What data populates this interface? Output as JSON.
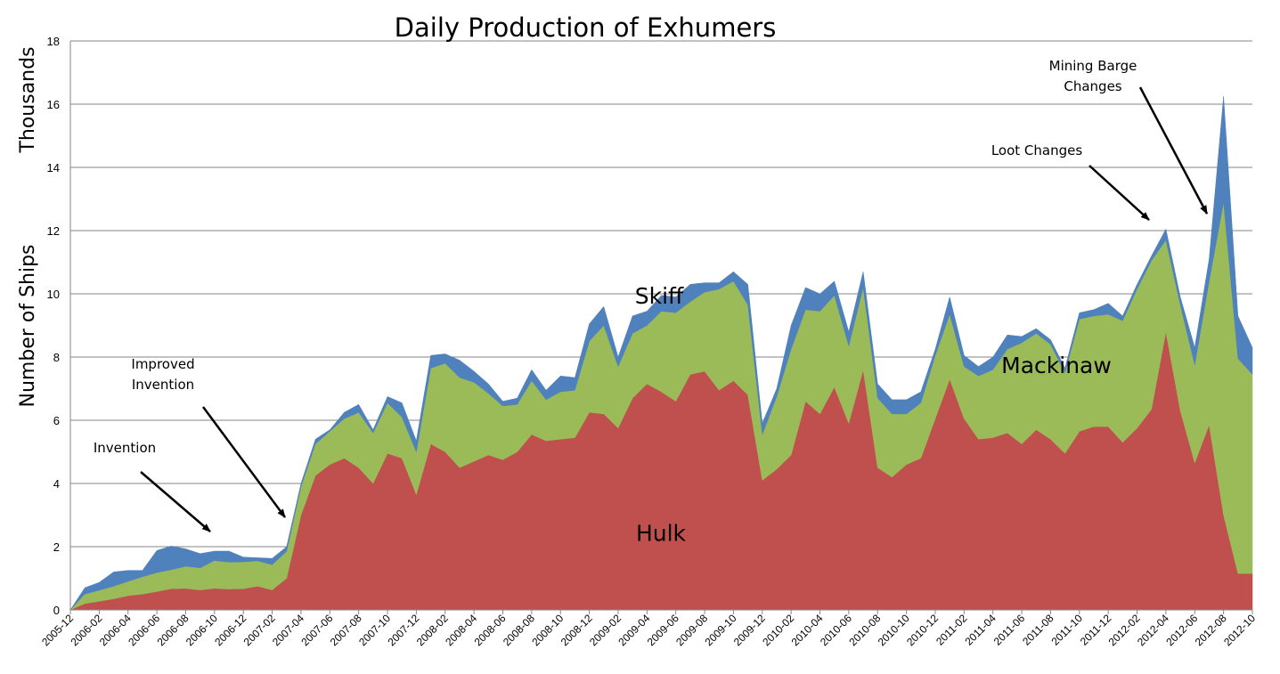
{
  "chart_data": {
    "type": "area",
    "stacked": true,
    "title": "Daily Production of Exhumers",
    "ylabel_top": "Thousands",
    "ylabel": "Number of Ships",
    "xlabel": "",
    "ylim": [
      0,
      18
    ],
    "yticks": [
      "0",
      "2",
      "4",
      "6",
      "8",
      "10",
      "12",
      "14",
      "16",
      "18"
    ],
    "grid": true,
    "x": [
      "2005-12",
      "2006-01",
      "2006-02",
      "2006-03",
      "2006-04",
      "2006-05",
      "2006-06",
      "2006-07",
      "2006-08",
      "2006-09",
      "2006-10",
      "2006-11",
      "2006-12",
      "2007-01",
      "2007-02",
      "2007-03",
      "2007-04",
      "2007-05",
      "2007-06",
      "2007-07",
      "2007-08",
      "2007-09",
      "2007-10",
      "2007-11",
      "2007-12",
      "2008-01",
      "2008-02",
      "2008-03",
      "2008-04",
      "2008-05",
      "2008-06",
      "2008-07",
      "2008-08",
      "2008-09",
      "2008-10",
      "2008-11",
      "2008-12",
      "2009-01",
      "2009-02",
      "2009-03",
      "2009-04",
      "2009-05",
      "2009-06",
      "2009-07",
      "2009-08",
      "2009-09",
      "2009-10",
      "2009-11",
      "2009-12",
      "2010-01",
      "2010-02",
      "2010-03",
      "2010-04",
      "2010-05",
      "2010-06",
      "2010-07",
      "2010-08",
      "2010-09",
      "2010-10",
      "2010-11",
      "2010-12",
      "2011-01",
      "2011-02",
      "2011-03",
      "2011-04",
      "2011-05",
      "2011-06",
      "2011-07",
      "2011-08",
      "2011-09",
      "2011-10",
      "2011-11",
      "2011-12",
      "2012-01",
      "2012-02",
      "2012-03",
      "2012-04",
      "2012-05",
      "2012-06",
      "2012-07",
      "2012-08",
      "2012-09",
      "2012-10"
    ],
    "xtick_labels": [
      "2005-12",
      "2006-02",
      "2006-04",
      "2006-06",
      "2006-08",
      "2006-10",
      "2006-12",
      "2007-02",
      "2007-04",
      "2007-06",
      "2007-08",
      "2007-10",
      "2007-12",
      "2008-02",
      "2008-04",
      "2008-06",
      "2008-08",
      "2008-10",
      "2008-12",
      "2009-02",
      "2009-04",
      "2009-06",
      "2009-08",
      "2009-10",
      "2009-12",
      "2010-02",
      "2010-04",
      "2010-06",
      "2010-08",
      "2010-10",
      "2010-12",
      "2011-02",
      "2011-04",
      "2011-06",
      "2011-08",
      "2011-10",
      "2011-12",
      "2012-02",
      "2012-04",
      "2012-06",
      "2012-08",
      "2012-10"
    ],
    "series": [
      {
        "name": "Hulk",
        "color": "#c0504d",
        "values": [
          0.0,
          0.2,
          0.27,
          0.35,
          0.45,
          0.5,
          0.58,
          0.67,
          0.68,
          0.63,
          0.68,
          0.66,
          0.67,
          0.75,
          0.63,
          1.0,
          3.0,
          4.25,
          4.6,
          4.8,
          4.5,
          4.0,
          4.95,
          4.8,
          3.65,
          5.25,
          5.0,
          4.5,
          4.7,
          4.9,
          4.75,
          5.0,
          5.55,
          5.35,
          5.4,
          5.45,
          6.25,
          6.2,
          5.75,
          6.7,
          7.15,
          6.9,
          6.6,
          7.45,
          7.55,
          6.95,
          7.25,
          6.8,
          4.1,
          4.45,
          4.9,
          6.6,
          6.2,
          7.05,
          5.9,
          7.6,
          4.5,
          4.2,
          4.6,
          4.8,
          6.05,
          7.3,
          6.05,
          5.4,
          5.45,
          5.6,
          5.25,
          5.7,
          5.4,
          4.95,
          5.65,
          5.8,
          5.8,
          5.3,
          5.75,
          6.35,
          8.8,
          6.3,
          4.65,
          5.85,
          3.0,
          1.15,
          1.15
        ]
      },
      {
        "name": "Mackinaw",
        "color": "#9bbb59",
        "values": [
          0.0,
          0.3,
          0.35,
          0.4,
          0.45,
          0.55,
          0.6,
          0.6,
          0.7,
          0.7,
          0.88,
          0.85,
          0.85,
          0.8,
          0.8,
          0.85,
          0.9,
          1.0,
          1.05,
          1.25,
          1.75,
          1.6,
          1.6,
          1.3,
          1.35,
          2.4,
          2.8,
          2.85,
          2.5,
          1.95,
          1.7,
          1.5,
          1.7,
          1.3,
          1.5,
          1.5,
          2.25,
          2.8,
          1.95,
          2.05,
          1.85,
          2.55,
          2.8,
          2.3,
          2.5,
          3.2,
          3.15,
          2.85,
          1.45,
          2.3,
          3.35,
          2.9,
          3.25,
          2.9,
          2.45,
          2.6,
          2.2,
          2.0,
          1.6,
          1.75,
          2.0,
          2.05,
          1.65,
          2.0,
          2.15,
          2.65,
          3.2,
          3.05,
          3.0,
          2.55,
          3.55,
          3.5,
          3.55,
          3.85,
          4.4,
          4.7,
          2.9,
          3.35,
          3.1,
          4.55,
          9.9,
          6.8,
          6.3
        ]
      },
      {
        "name": "Skiff",
        "color": "#4f81bd",
        "values": [
          0.0,
          0.2,
          0.25,
          0.45,
          0.35,
          0.2,
          0.7,
          0.75,
          0.55,
          0.45,
          0.3,
          0.35,
          0.15,
          0.1,
          0.2,
          0.15,
          0.1,
          0.15,
          0.05,
          0.2,
          0.25,
          0.1,
          0.2,
          0.45,
          0.35,
          0.4,
          0.3,
          0.55,
          0.35,
          0.3,
          0.15,
          0.2,
          0.35,
          0.3,
          0.5,
          0.4,
          0.55,
          0.6,
          0.3,
          0.55,
          0.45,
          0.5,
          0.5,
          0.55,
          0.3,
          0.2,
          0.3,
          0.65,
          0.35,
          0.25,
          0.75,
          0.7,
          0.55,
          0.45,
          0.45,
          0.5,
          0.45,
          0.45,
          0.45,
          0.35,
          0.2,
          0.55,
          0.35,
          0.3,
          0.4,
          0.45,
          0.2,
          0.15,
          0.15,
          0.15,
          0.2,
          0.2,
          0.35,
          0.15,
          0.15,
          0.15,
          0.35,
          0.25,
          0.55,
          0.7,
          3.35,
          1.35,
          0.85
        ]
      }
    ],
    "series_labels": [
      {
        "text": "Hulk",
        "series": "Hulk"
      },
      {
        "text": "Mackinaw",
        "series": "Mackinaw"
      },
      {
        "text": "Skiff",
        "series": "Skiff"
      }
    ],
    "annotations": [
      {
        "lines": [
          "Invention"
        ],
        "target": "2006-10"
      },
      {
        "lines": [
          "Improved",
          "Invention"
        ],
        "target": "2007-03"
      },
      {
        "lines": [
          "Loot Changes"
        ],
        "target": "2012-03"
      },
      {
        "lines": [
          "Mining Barge",
          "Changes"
        ],
        "target": "2012-07"
      }
    ]
  }
}
